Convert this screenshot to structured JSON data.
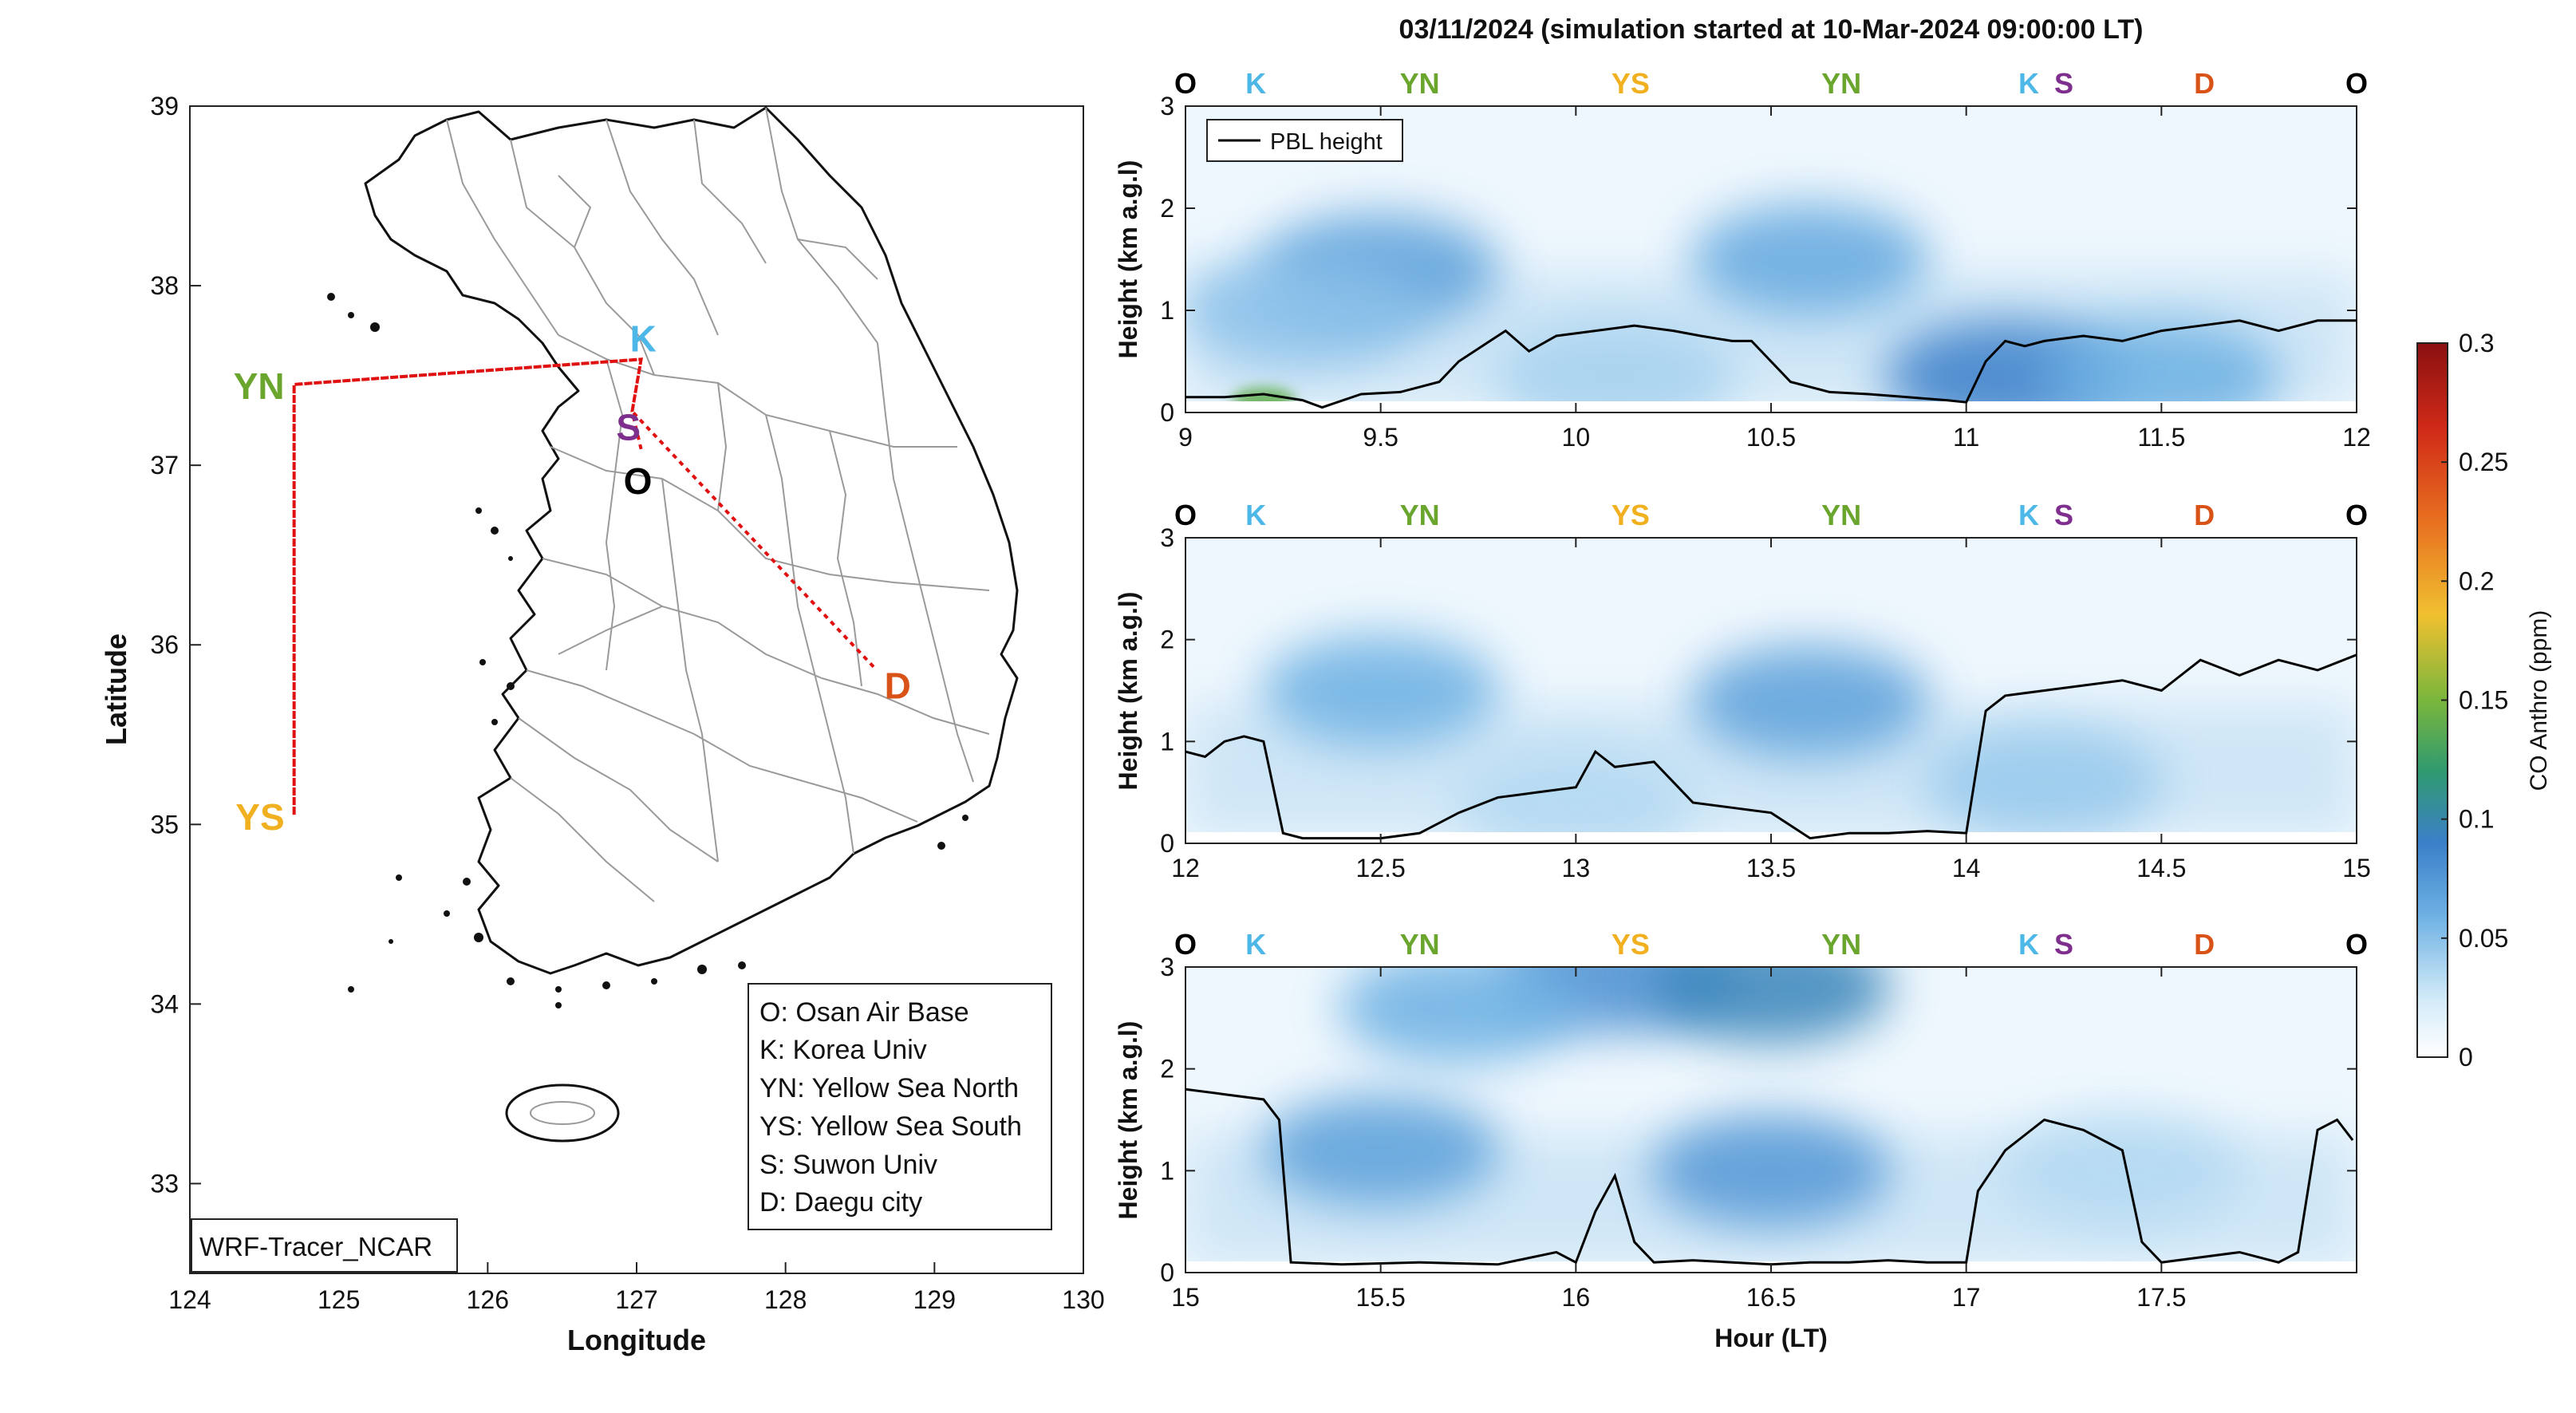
{
  "title": "03/11/2024 (simulation started at 10-Mar-2024 09:00:00 LT)",
  "colors": {
    "O": "#000000",
    "K": "#4db8e8",
    "YN": "#6aa52e",
    "YS": "#f0b020",
    "S": "#7e2f8e",
    "D": "#d95319",
    "path": "#e01010",
    "pbl": "#000000"
  },
  "map": {
    "xlabel": "Longitude",
    "ylabel": "Latitude",
    "xticks": [
      "124",
      "125",
      "126",
      "127",
      "128",
      "129",
      "130"
    ],
    "yticks": [
      "33",
      "34",
      "35",
      "36",
      "37",
      "38",
      "39"
    ],
    "xlim": [
      124,
      130
    ],
    "ylim": [
      32.5,
      39
    ],
    "model_label": "WRF-Tracer_NCAR",
    "sites": [
      {
        "code": "YN",
        "lon": 124.7,
        "lat": 37.45
      },
      {
        "code": "YS",
        "lon": 124.7,
        "lat": 35.05
      },
      {
        "code": "K",
        "lon": 127.03,
        "lat": 37.59
      },
      {
        "code": "S",
        "lon": 126.97,
        "lat": 37.3
      },
      {
        "code": "O",
        "lon": 127.03,
        "lat": 37.09
      },
      {
        "code": "D",
        "lon": 128.6,
        "lat": 35.87
      }
    ],
    "legend": [
      "O: Osan Air Base",
      "K: Korea Univ",
      "YN: Yellow Sea North",
      "YS: Yellow Sea South",
      "S: Suwon Univ",
      "D: Daegu city"
    ]
  },
  "site_labels": {
    "panel_1": [
      "O",
      "K",
      "YN",
      "YS",
      "YN",
      "K",
      "S",
      "D",
      "O"
    ],
    "panel_2": [
      "O",
      "K",
      "YN",
      "YS",
      "YN",
      "K",
      "S",
      "D",
      "O"
    ],
    "panel_3": [
      "O",
      "K",
      "YN",
      "YS",
      "YN",
      "K",
      "S",
      "D",
      "O"
    ]
  },
  "chart_data": [
    {
      "type": "heatmap",
      "ylabel": "Height (km a.g.l)",
      "legend": "PBL height",
      "xlim": [
        9,
        12
      ],
      "ylim": [
        0,
        3
      ],
      "xticks": [
        "9",
        "9.5",
        "10",
        "10.5",
        "11",
        "11.5",
        "12"
      ],
      "yticks": [
        "0",
        "1",
        "2",
        "3"
      ],
      "pbl": {
        "x": [
          9.0,
          9.1,
          9.2,
          9.3,
          9.35,
          9.45,
          9.55,
          9.65,
          9.7,
          9.78,
          9.82,
          9.88,
          9.95,
          10.05,
          10.15,
          10.25,
          10.32,
          10.4,
          10.45,
          10.55,
          10.65,
          10.75,
          10.85,
          10.95,
          11.0,
          11.05,
          11.1,
          11.15,
          11.2,
          11.3,
          11.4,
          11.5,
          11.6,
          11.7,
          11.8,
          11.9,
          12.0
        ],
        "y": [
          0.15,
          0.15,
          0.18,
          0.12,
          0.05,
          0.18,
          0.2,
          0.3,
          0.5,
          0.7,
          0.8,
          0.6,
          0.75,
          0.8,
          0.85,
          0.8,
          0.75,
          0.7,
          0.7,
          0.3,
          0.2,
          0.18,
          0.15,
          0.12,
          0.1,
          0.5,
          0.7,
          0.65,
          0.7,
          0.75,
          0.7,
          0.8,
          0.85,
          0.9,
          0.8,
          0.9,
          0.9
        ]
      },
      "hotspots": [
        {
          "x": 9.5,
          "y": 1.4,
          "v": 0.07
        },
        {
          "x": 9.3,
          "y": 1.0,
          "v": 0.05
        },
        {
          "x": 10.6,
          "y": 1.5,
          "v": 0.065
        },
        {
          "x": 10.1,
          "y": 0.35,
          "v": 0.04
        },
        {
          "x": 11.1,
          "y": 0.35,
          "v": 0.09
        },
        {
          "x": 11.5,
          "y": 0.35,
          "v": 0.06
        },
        {
          "x": 9.2,
          "y": 0.12,
          "v": 0.14
        }
      ]
    },
    {
      "type": "heatmap",
      "ylabel": "Height (km a.g.l)",
      "xlim": [
        12,
        15
      ],
      "ylim": [
        0,
        3
      ],
      "xticks": [
        "12",
        "12.5",
        "13",
        "13.5",
        "14",
        "14.5",
        "15"
      ],
      "yticks": [
        "0",
        "1",
        "2",
        "3"
      ],
      "pbl": {
        "x": [
          12.0,
          12.05,
          12.1,
          12.15,
          12.2,
          12.25,
          12.3,
          12.4,
          12.5,
          12.6,
          12.7,
          12.8,
          12.9,
          13.0,
          13.05,
          13.1,
          13.2,
          13.3,
          13.4,
          13.5,
          13.6,
          13.7,
          13.8,
          13.9,
          14.0,
          14.05,
          14.1,
          14.2,
          14.3,
          14.4,
          14.5,
          14.6,
          14.7,
          14.8,
          14.9,
          15.0
        ],
        "y": [
          0.9,
          0.85,
          1.0,
          1.05,
          1.0,
          0.1,
          0.05,
          0.05,
          0.05,
          0.1,
          0.3,
          0.45,
          0.5,
          0.55,
          0.9,
          0.75,
          0.8,
          0.4,
          0.35,
          0.3,
          0.05,
          0.1,
          0.1,
          0.12,
          0.1,
          1.3,
          1.45,
          1.5,
          1.55,
          1.6,
          1.5,
          1.8,
          1.65,
          1.8,
          1.7,
          1.85
        ]
      },
      "hotspots": [
        {
          "x": 12.5,
          "y": 1.5,
          "v": 0.06
        },
        {
          "x": 13.6,
          "y": 1.4,
          "v": 0.07
        },
        {
          "x": 13.0,
          "y": 0.4,
          "v": 0.035
        },
        {
          "x": 14.2,
          "y": 0.6,
          "v": 0.045
        }
      ]
    },
    {
      "type": "heatmap",
      "ylabel": "Height (km a.g.l)",
      "xlabel": "Hour (LT)",
      "xlim": [
        15,
        18
      ],
      "ylim": [
        0,
        3
      ],
      "xticks": [
        "15",
        "15.5",
        "16",
        "16.5",
        "17",
        "17.5"
      ],
      "yticks": [
        "0",
        "1",
        "2",
        "3"
      ],
      "pbl": {
        "x": [
          15.0,
          15.1,
          15.2,
          15.24,
          15.27,
          15.4,
          15.6,
          15.8,
          15.95,
          16.0,
          16.05,
          16.1,
          16.15,
          16.2,
          16.3,
          16.4,
          16.5,
          16.6,
          16.7,
          16.8,
          16.9,
          17.0,
          17.03,
          17.1,
          17.2,
          17.3,
          17.4,
          17.45,
          17.5,
          17.6,
          17.7,
          17.8,
          17.85,
          17.9,
          17.95,
          17.99
        ],
        "y": [
          1.8,
          1.75,
          1.7,
          1.5,
          0.1,
          0.08,
          0.1,
          0.08,
          0.2,
          0.1,
          0.6,
          0.95,
          0.3,
          0.1,
          0.12,
          0.1,
          0.08,
          0.1,
          0.1,
          0.12,
          0.1,
          0.1,
          0.8,
          1.2,
          1.5,
          1.4,
          1.2,
          0.3,
          0.1,
          0.15,
          0.2,
          0.1,
          0.2,
          1.4,
          1.5,
          1.3
        ]
      },
      "hotspots": [
        {
          "x": 15.5,
          "y": 1.2,
          "v": 0.07
        },
        {
          "x": 16.5,
          "y": 1.0,
          "v": 0.075
        },
        {
          "x": 16.1,
          "y": 2.9,
          "v": 0.08
        },
        {
          "x": 16.5,
          "y": 2.8,
          "v": 0.095
        },
        {
          "x": 15.7,
          "y": 2.6,
          "v": 0.06
        },
        {
          "x": 17.4,
          "y": 1.0,
          "v": 0.035
        }
      ]
    }
  ],
  "colorbar": {
    "label": "CO Anthro (ppm)",
    "ticks": [
      "0",
      "0.05",
      "0.1",
      "0.15",
      "0.2",
      "0.25",
      "0.3"
    ],
    "range": [
      0,
      0.3
    ]
  }
}
